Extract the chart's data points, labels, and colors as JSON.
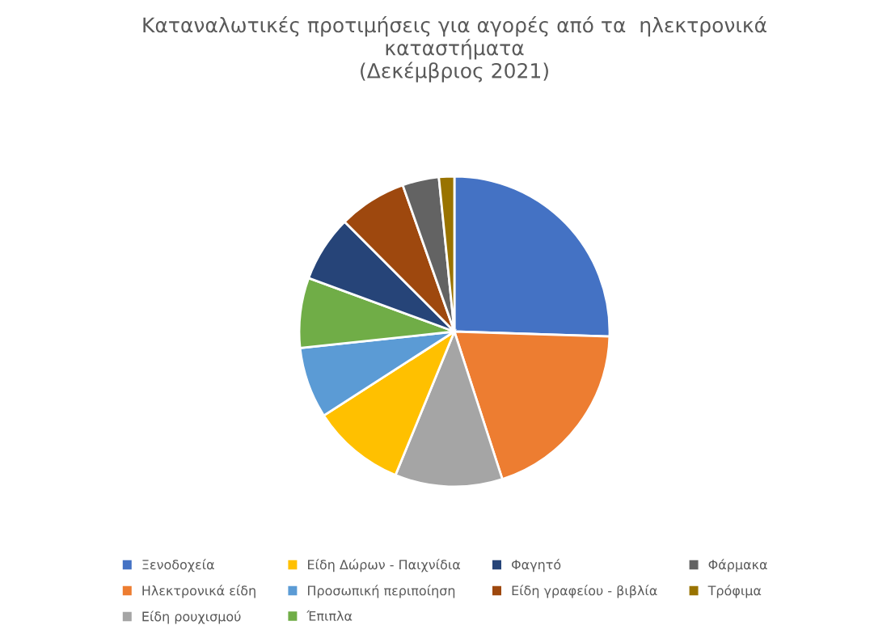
{
  "chart_data": {
    "type": "pie",
    "title": "Καταναλωτικές προτιμήσεις για αγορές από τα  ηλεκτρονικά\nκαταστήματα\n(Δεκέμβριος 2021)",
    "categories": [
      "Ξενοδοχεία",
      "Ηλεκτρονικά είδη",
      "Είδη ρουχισμού",
      "Είδη Δώρων - Παιχνίδια",
      "Προσωπική περιποίηση",
      "Έπιπλα",
      "Φαγητό",
      "Είδη γραφείου - βιβλία",
      "Φάρμακα",
      "Τρόφιμα"
    ],
    "values": [
      25.5,
      19.5,
      11.2,
      9.7,
      7.4,
      7.3,
      6.9,
      7.1,
      3.8,
      1.6
    ],
    "colors": [
      "#4472c4",
      "#ed7d31",
      "#a5a5a5",
      "#ffc000",
      "#5b9bd5",
      "#70ad47",
      "#264478",
      "#9e480e",
      "#636363",
      "#997300"
    ],
    "legend": "bottom"
  }
}
